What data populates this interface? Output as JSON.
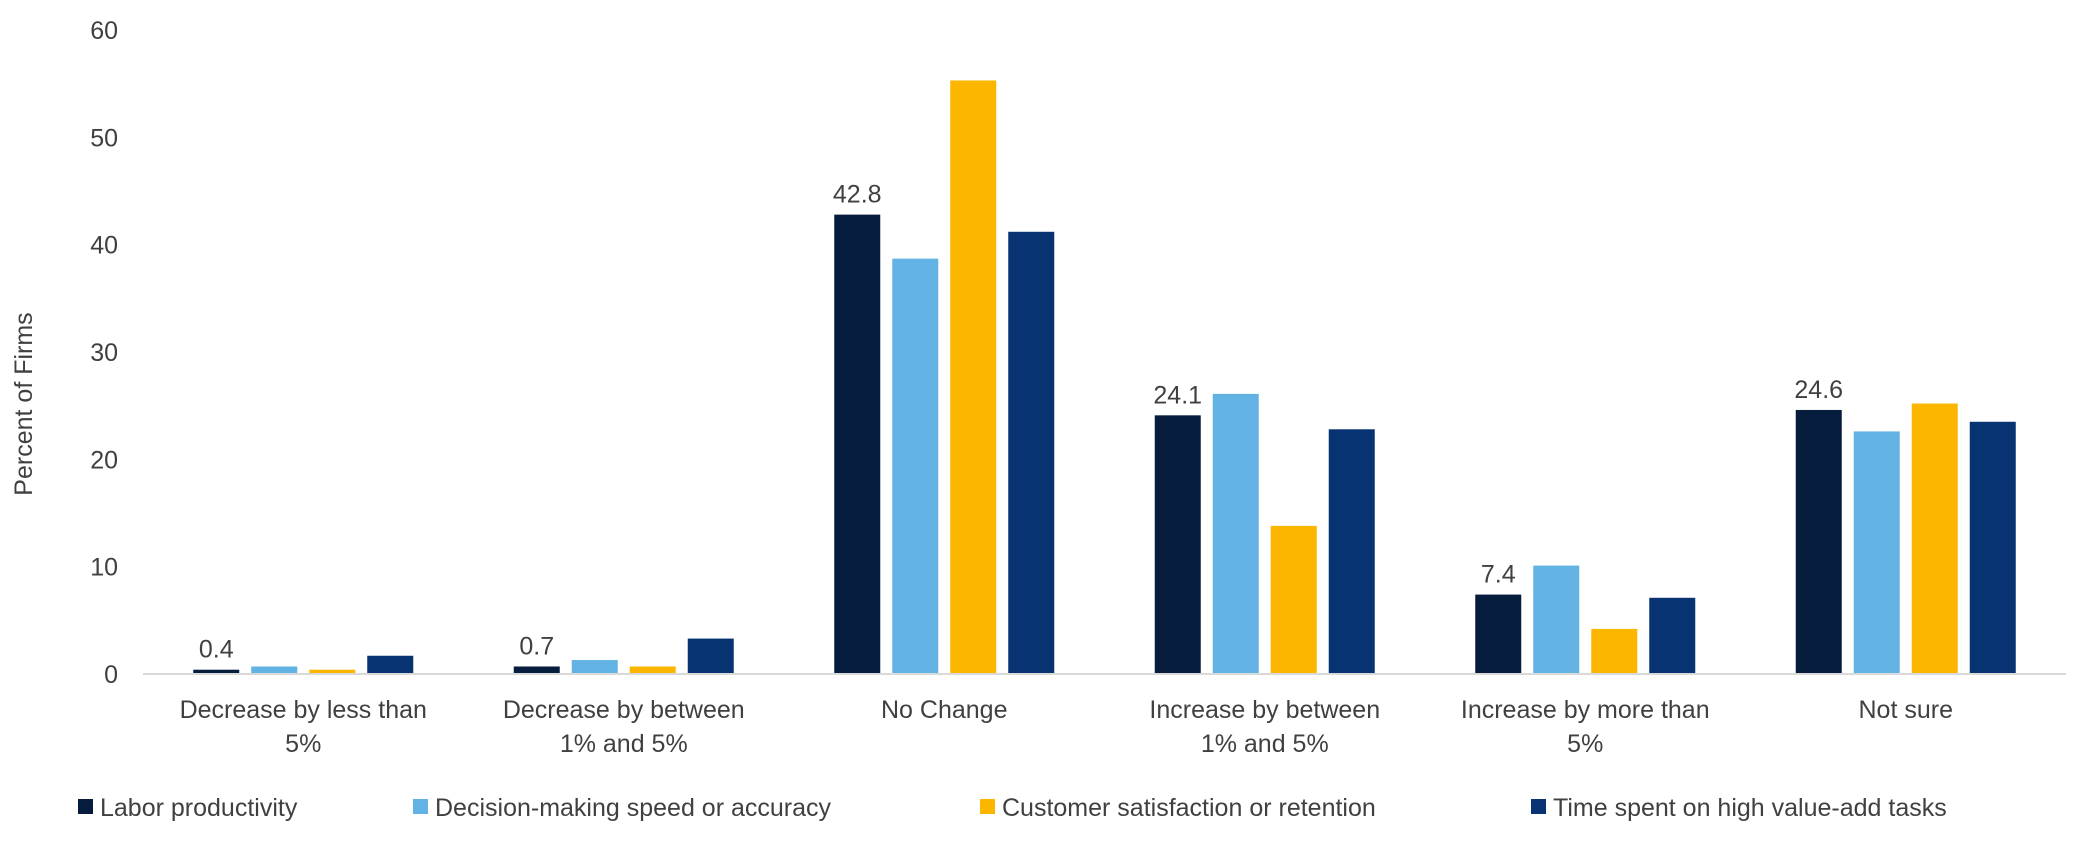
{
  "chart_data": {
    "type": "bar",
    "title": "",
    "xlabel": "",
    "ylabel": "Percent of Firms",
    "ylim": [
      0,
      60
    ],
    "yticks": [
      0,
      10,
      20,
      30,
      40,
      50,
      60
    ],
    "grid": false,
    "legend_position": "bottom",
    "categories": [
      [
        "Decrease by less than",
        "5%"
      ],
      [
        "Decrease by between",
        "1% and 5%"
      ],
      [
        "No Change"
      ],
      [
        "Increase by between",
        "1% and 5%"
      ],
      [
        "Increase by more than",
        "5%"
      ],
      [
        "Not sure"
      ]
    ],
    "series": [
      {
        "name": "Labor productivity",
        "color": "#061c3d",
        "values": [
          0.4,
          0.7,
          42.8,
          24.1,
          7.4,
          24.6
        ],
        "labels": [
          "0.4",
          "0.7",
          "42.8",
          "24.1",
          "7.4",
          "24.6"
        ]
      },
      {
        "name": "Decision-making speed or accuracy",
        "color": "#62b3e4",
        "values": [
          0.7,
          1.3,
          38.7,
          26.1,
          10.1,
          22.6
        ]
      },
      {
        "name": "Customer satisfaction or retention",
        "color": "#fdb600",
        "values": [
          0.4,
          0.7,
          55.3,
          13.8,
          4.2,
          25.2
        ]
      },
      {
        "name": "Time spent on high value-add tasks",
        "color": "#073372",
        "values": [
          1.7,
          3.3,
          41.2,
          22.8,
          7.1,
          23.5
        ]
      }
    ]
  }
}
